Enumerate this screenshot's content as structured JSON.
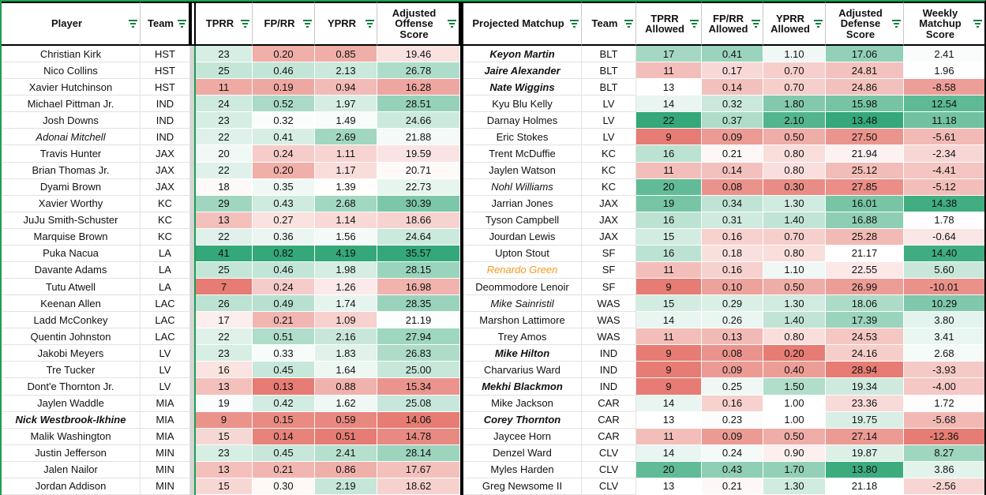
{
  "headers": {
    "left": [
      "Player",
      "Team",
      "TPRR",
      "FP/RR",
      "YPRR",
      "Adjusted Offense Score"
    ],
    "right": [
      "Projected Matchup",
      "Team",
      "TPRR Allowed",
      "FP/RR Allowed",
      "YPRR Allowed",
      "Adjusted Defense Score",
      "Weekly Matchup Score"
    ]
  },
  "colors": {
    "scale_green": "#34A879",
    "scale_red": "#E67C73",
    "filter_icon": "#147D3E",
    "range_border": "#1E9E50",
    "divider": "#000000",
    "orange_player": "#F7981D"
  },
  "color_scales": {
    "tprr": {
      "min": 7,
      "mid": 18.5,
      "max": 41
    },
    "fprr": {
      "min": 0.13,
      "mid": 0.31,
      "max": 0.82
    },
    "yprr": {
      "min": 0.51,
      "mid": 1.4,
      "max": 4.19
    },
    "adj_off": {
      "min": 14.06,
      "mid": 21,
      "max": 35.57
    },
    "tprr_a": {
      "min": 9,
      "mid": 13,
      "max": 22
    },
    "fprr_a": {
      "min": 0.05,
      "mid": 0.22,
      "max": 0.6
    },
    "yprr_a": {
      "min": 0.2,
      "mid": 1,
      "max": 2.3
    },
    "adj_def": {
      "min": 13.48,
      "mid": 21.2,
      "max": 28.94,
      "invert": true
    },
    "weekly": {
      "min": -12.36,
      "mid": 2,
      "max": 15.2
    }
  },
  "rows": [
    {
      "p": "Christian Kirk",
      "pt": "HST",
      "v": [
        "23",
        "0.20",
        "0.85",
        "19.46"
      ],
      "m": "Keyon Martin",
      "ms": "bi",
      "mt": "BLT",
      "w": [
        "17",
        "0.41",
        "1.10",
        "17.06",
        "2.41"
      ]
    },
    {
      "p": "Nico Collins",
      "pt": "HST",
      "v": [
        "25",
        "0.46",
        "2.13",
        "26.78"
      ],
      "m": "Jaire Alexander",
      "ms": "bi",
      "mt": "BLT",
      "w": [
        "11",
        "0.17",
        "0.70",
        "24.81",
        "1.96"
      ]
    },
    {
      "p": "Xavier Hutchinson",
      "pt": "HST",
      "v": [
        "11",
        "0.19",
        "0.94",
        "16.28"
      ],
      "m": "Nate Wiggins",
      "ms": "bi",
      "mt": "BLT",
      "w": [
        "13",
        "0.14",
        "0.70",
        "24.86",
        "-8.58"
      ]
    },
    {
      "p": "Michael Pittman Jr.",
      "pt": "IND",
      "v": [
        "24",
        "0.52",
        "1.97",
        "28.51"
      ],
      "m": "Kyu Blu Kelly",
      "mt": "LV",
      "w": [
        "14",
        "0.32",
        "1.80",
        "15.98",
        "12.54"
      ]
    },
    {
      "p": "Josh Downs",
      "pt": "IND",
      "v": [
        "23",
        "0.32",
        "1.49",
        "24.66"
      ],
      "m": "Darnay Holmes",
      "mt": "LV",
      "w": [
        "22",
        "0.37",
        "2.10",
        "13.48",
        "11.18"
      ]
    },
    {
      "p": "Adonai Mitchell",
      "ps": "i",
      "pt": "IND",
      "v": [
        "22",
        "0.41",
        "2.69",
        "21.88"
      ],
      "m": "Eric Stokes",
      "mt": "LV",
      "w": [
        "9",
        "0.09",
        "0.50",
        "27.50",
        "-5.61"
      ]
    },
    {
      "p": "Travis Hunter",
      "pt": "JAX",
      "v": [
        "20",
        "0.24",
        "1.11",
        "19.59"
      ],
      "m": "Trent McDuffie",
      "mt": "KC",
      "w": [
        "16",
        "0.21",
        "0.80",
        "21.94",
        "-2.34"
      ]
    },
    {
      "p": "Brian Thomas Jr.",
      "pt": "JAX",
      "v": [
        "22",
        "0.20",
        "1.17",
        "20.71"
      ],
      "m": "Jaylen Watson",
      "mt": "KC",
      "w": [
        "11",
        "0.14",
        "0.80",
        "25.12",
        "-4.41"
      ]
    },
    {
      "p": "Dyami Brown",
      "pt": "JAX",
      "v": [
        "18",
        "0.35",
        "1.39",
        "22.73"
      ],
      "m": "Nohl Williams",
      "ms": "i",
      "mt": "KC",
      "w": [
        "20",
        "0.08",
        "0.30",
        "27.85",
        "-5.12"
      ]
    },
    {
      "p": "Xavier Worthy",
      "pt": "KC",
      "v": [
        "29",
        "0.43",
        "2.68",
        "30.39"
      ],
      "m": "Jarrian Jones",
      "mt": "JAX",
      "w": [
        "19",
        "0.34",
        "1.30",
        "16.01",
        "14.38"
      ]
    },
    {
      "p": "JuJu Smith-Schuster",
      "pt": "KC",
      "v": [
        "13",
        "0.27",
        "1.14",
        "18.66"
      ],
      "m": "Tyson Campbell",
      "mt": "JAX",
      "w": [
        "16",
        "0.31",
        "1.40",
        "16.88",
        "1.78"
      ]
    },
    {
      "p": "Marquise Brown",
      "pt": "KC",
      "v": [
        "22",
        "0.36",
        "1.56",
        "24.64"
      ],
      "m": "Jourdan Lewis",
      "mt": "JAX",
      "w": [
        "15",
        "0.16",
        "0.70",
        "25.28",
        "-0.64"
      ]
    },
    {
      "p": "Puka Nacua",
      "pt": "LA",
      "v": [
        "41",
        "0.82",
        "4.19",
        "35.57"
      ],
      "m": "Upton Stout",
      "mt": "SF",
      "w": [
        "16",
        "0.18",
        "0.80",
        "21.17",
        "14.40"
      ]
    },
    {
      "p": "Davante Adams",
      "pt": "LA",
      "v": [
        "25",
        "0.46",
        "1.98",
        "28.15"
      ],
      "m": "Renardo Green",
      "ms": "io",
      "mt": "SF",
      "w": [
        "11",
        "0.16",
        "1.10",
        "22.55",
        "5.60"
      ]
    },
    {
      "p": "Tutu Atwell",
      "pt": "LA",
      "v": [
        "7",
        "0.24",
        "1.26",
        "16.98"
      ],
      "m": "Deommodore Lenoir",
      "mt": "SF",
      "w": [
        "9",
        "0.10",
        "0.50",
        "26.99",
        "-10.01"
      ]
    },
    {
      "p": "Keenan Allen",
      "pt": "LAC",
      "v": [
        "26",
        "0.49",
        "1.74",
        "28.35"
      ],
      "m": "Mike Sainristil",
      "ms": "i",
      "mt": "WAS",
      "w": [
        "15",
        "0.29",
        "1.30",
        "18.06",
        "10.29"
      ]
    },
    {
      "p": "Ladd McConkey",
      "pt": "LAC",
      "v": [
        "17",
        "0.21",
        "1.09",
        "21.19"
      ],
      "m": "Marshon Lattimore",
      "mt": "WAS",
      "w": [
        "14",
        "0.26",
        "1.40",
        "17.39",
        "3.80"
      ]
    },
    {
      "p": "Quentin Johnston",
      "pt": "LAC",
      "v": [
        "22",
        "0.51",
        "2.16",
        "27.94"
      ],
      "m": "Trey Amos",
      "mt": "WAS",
      "w": [
        "11",
        "0.13",
        "0.80",
        "24.53",
        "3.41"
      ]
    },
    {
      "p": "Jakobi Meyers",
      "pt": "LV",
      "v": [
        "23",
        "0.33",
        "1.83",
        "26.83"
      ],
      "m": "Mike Hilton",
      "ms": "bi",
      "mt": "IND",
      "w": [
        "9",
        "0.08",
        "0.20",
        "24.16",
        "2.68"
      ]
    },
    {
      "p": "Tre Tucker",
      "pt": "LV",
      "v": [
        "16",
        "0.45",
        "1.64",
        "25.00"
      ],
      "m": "Charvarius Ward",
      "mt": "IND",
      "w": [
        "9",
        "0.09",
        "0.40",
        "28.94",
        "-3.93"
      ]
    },
    {
      "p": "Dont'e Thornton Jr.",
      "pt": "LV",
      "v": [
        "13",
        "0.13",
        "0.88",
        "15.34"
      ],
      "m": "Mekhi Blackmon",
      "ms": "bi",
      "mt": "IND",
      "w": [
        "9",
        "0.25",
        "1.50",
        "19.34",
        "-4.00"
      ]
    },
    {
      "p": "Jaylen Waddle",
      "pt": "MIA",
      "v": [
        "19",
        "0.42",
        "1.62",
        "25.08"
      ],
      "m": "Mike Jackson",
      "mt": "CAR",
      "w": [
        "14",
        "0.16",
        "1.00",
        "23.36",
        "1.72"
      ]
    },
    {
      "p": "Nick Westbrook-Ikhine",
      "ps": "bi",
      "pt": "MIA",
      "v": [
        "9",
        "0.15",
        "0.59",
        "14.06"
      ],
      "m": "Corey Thornton",
      "ms": "bi",
      "mt": "CAR",
      "w": [
        "13",
        "0.23",
        "1.00",
        "19.75",
        "-5.68"
      ]
    },
    {
      "p": "Malik Washington",
      "pt": "MIA",
      "v": [
        "15",
        "0.14",
        "0.51",
        "14.78"
      ],
      "m": "Jaycee Horn",
      "mt": "CAR",
      "w": [
        "11",
        "0.09",
        "0.50",
        "27.14",
        "-12.36"
      ]
    },
    {
      "p": "Justin Jefferson",
      "pt": "MIN",
      "v": [
        "23",
        "0.45",
        "2.41",
        "28.14"
      ],
      "m": "Denzel Ward",
      "mt": "CLV",
      "w": [
        "14",
        "0.24",
        "0.90",
        "19.87",
        "8.27"
      ]
    },
    {
      "p": "Jalen Nailor",
      "pt": "MIN",
      "v": [
        "13",
        "0.21",
        "0.86",
        "17.67"
      ],
      "m": "Myles Harden",
      "mt": "CLV",
      "w": [
        "20",
        "0.43",
        "1.70",
        "13.80",
        "3.86"
      ]
    },
    {
      "p": "Jordan Addison",
      "pt": "MIN",
      "v": [
        "15",
        "0.30",
        "2.19",
        "18.62"
      ],
      "m": "Greg Newsome II",
      "mt": "CLV",
      "w": [
        "13",
        "0.21",
        "1.30",
        "21.18",
        "-2.56"
      ]
    }
  ]
}
